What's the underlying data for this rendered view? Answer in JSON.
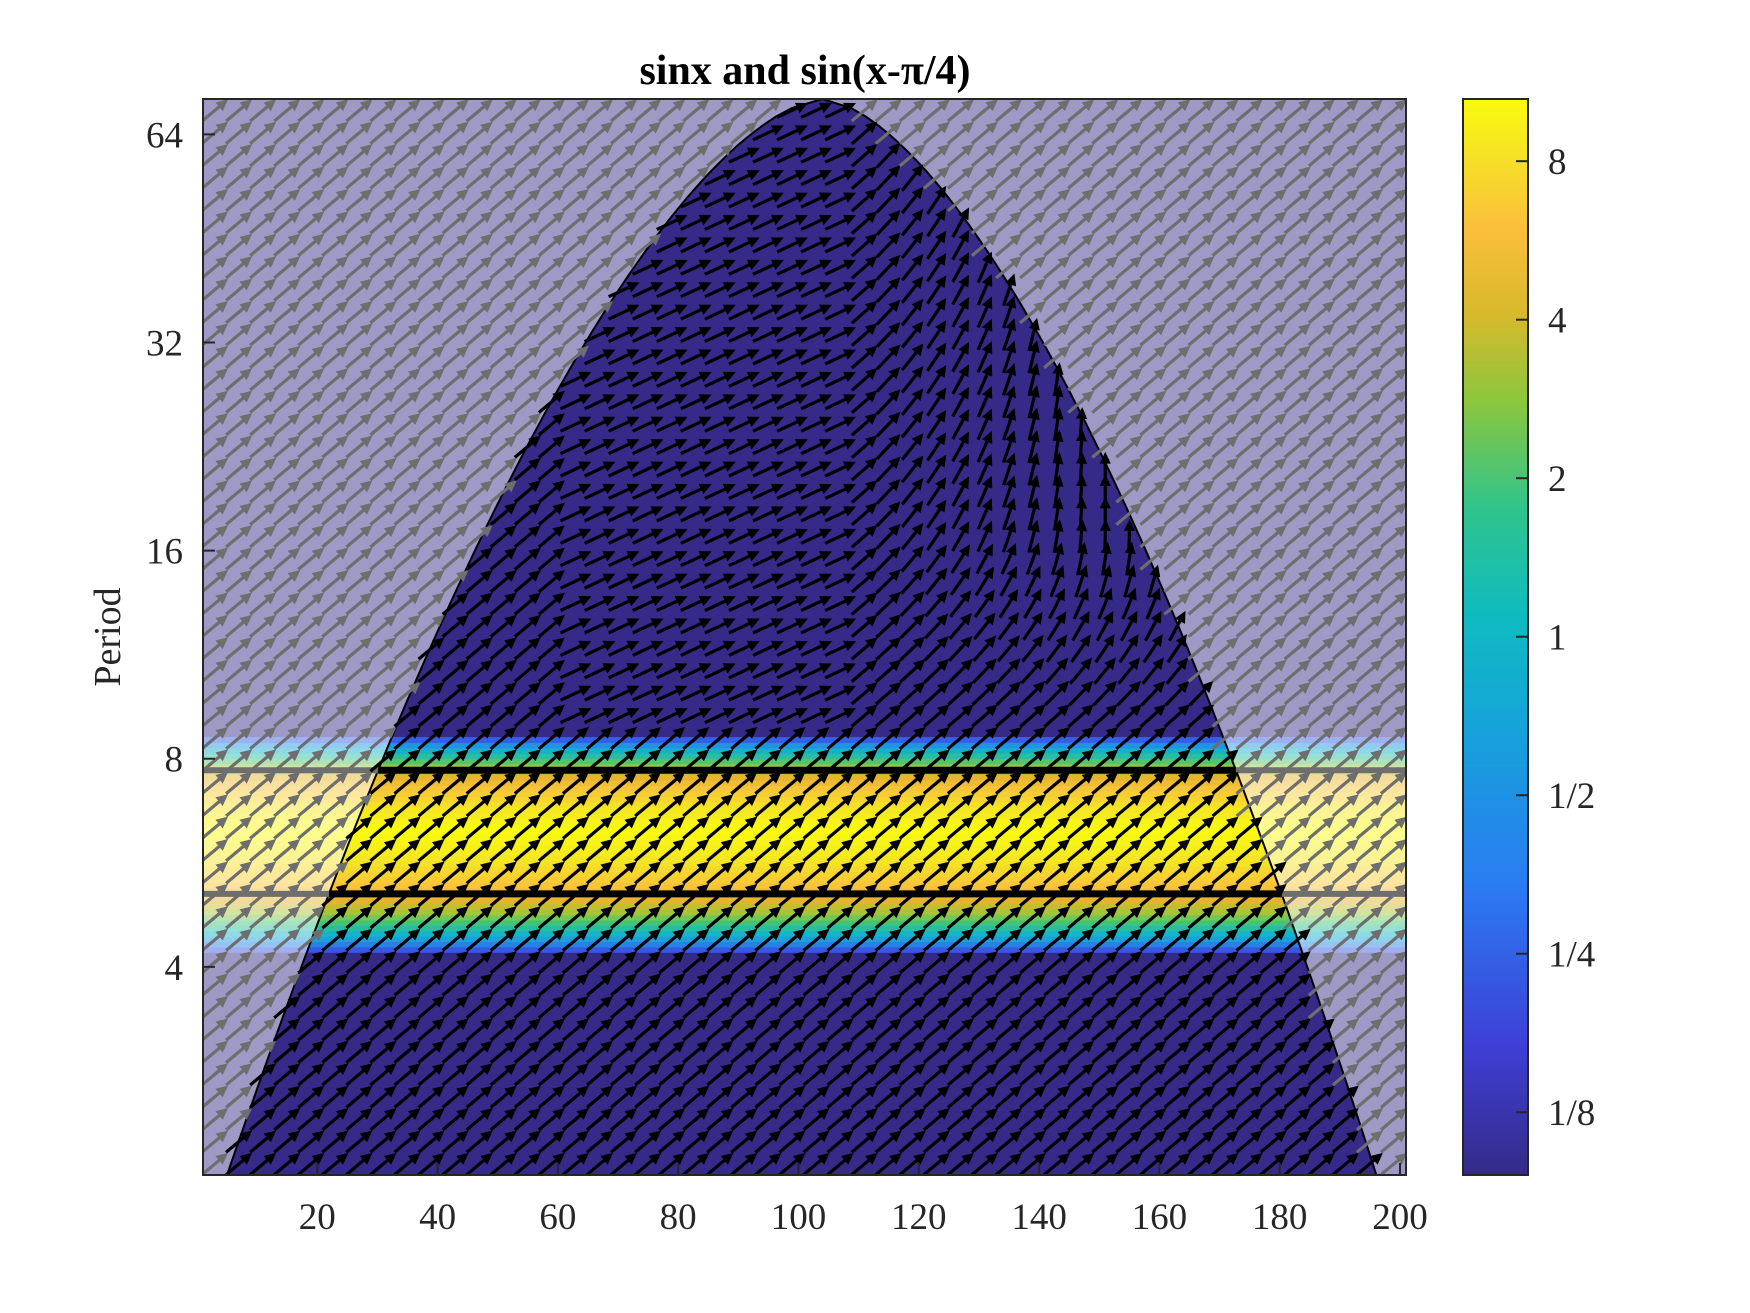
{
  "chart_data": {
    "type": "heatmap",
    "title": "sinx and sin(x-π/4)",
    "xlabel": "",
    "ylabel": "Period",
    "x_range": [
      1,
      201
    ],
    "y_range": [
      2,
      72
    ],
    "y_scale": "log2",
    "x_ticks": [
      "20",
      "40",
      "60",
      "80",
      "100",
      "120",
      "140",
      "160",
      "180",
      "200"
    ],
    "x_tick_values": [
      20,
      40,
      60,
      80,
      100,
      120,
      140,
      160,
      180,
      200
    ],
    "y_ticks": [
      "4",
      "8",
      "16",
      "32",
      "64"
    ],
    "y_tick_values": [
      4,
      8,
      16,
      32,
      64
    ],
    "colorbar": {
      "scale": "log2",
      "range": [
        0.095,
        10.5
      ],
      "ticks": [
        "1/8",
        "1/4",
        "1/2",
        "1",
        "2",
        "4",
        "8"
      ],
      "tick_values": [
        0.125,
        0.25,
        0.5,
        1,
        2,
        4,
        8
      ],
      "colormap": "parula"
    },
    "power_band": {
      "period_center": 6.3,
      "period_range": [
        4.2,
        8.6
      ],
      "peak_power": 9.5,
      "significance_contour_periods": [
        5.1,
        7.7
      ]
    },
    "cone_of_influence": {
      "peak_x": 104,
      "peak_period": 72
    },
    "phase_arrows": {
      "low_period_band": "pointing north-east (in-phase with lag)",
      "high_period_region": "rotating toward north for x > 110",
      "outside_coi": "grey, north-east"
    },
    "grid": false,
    "legend": "none",
    "colors": {
      "background_low": "#352a87",
      "outside_coi_overlay": "#b9b0e0",
      "peak": "#f9fb0e",
      "arrow_inside": "#000000",
      "arrow_outside": "#6e6e6e"
    }
  }
}
